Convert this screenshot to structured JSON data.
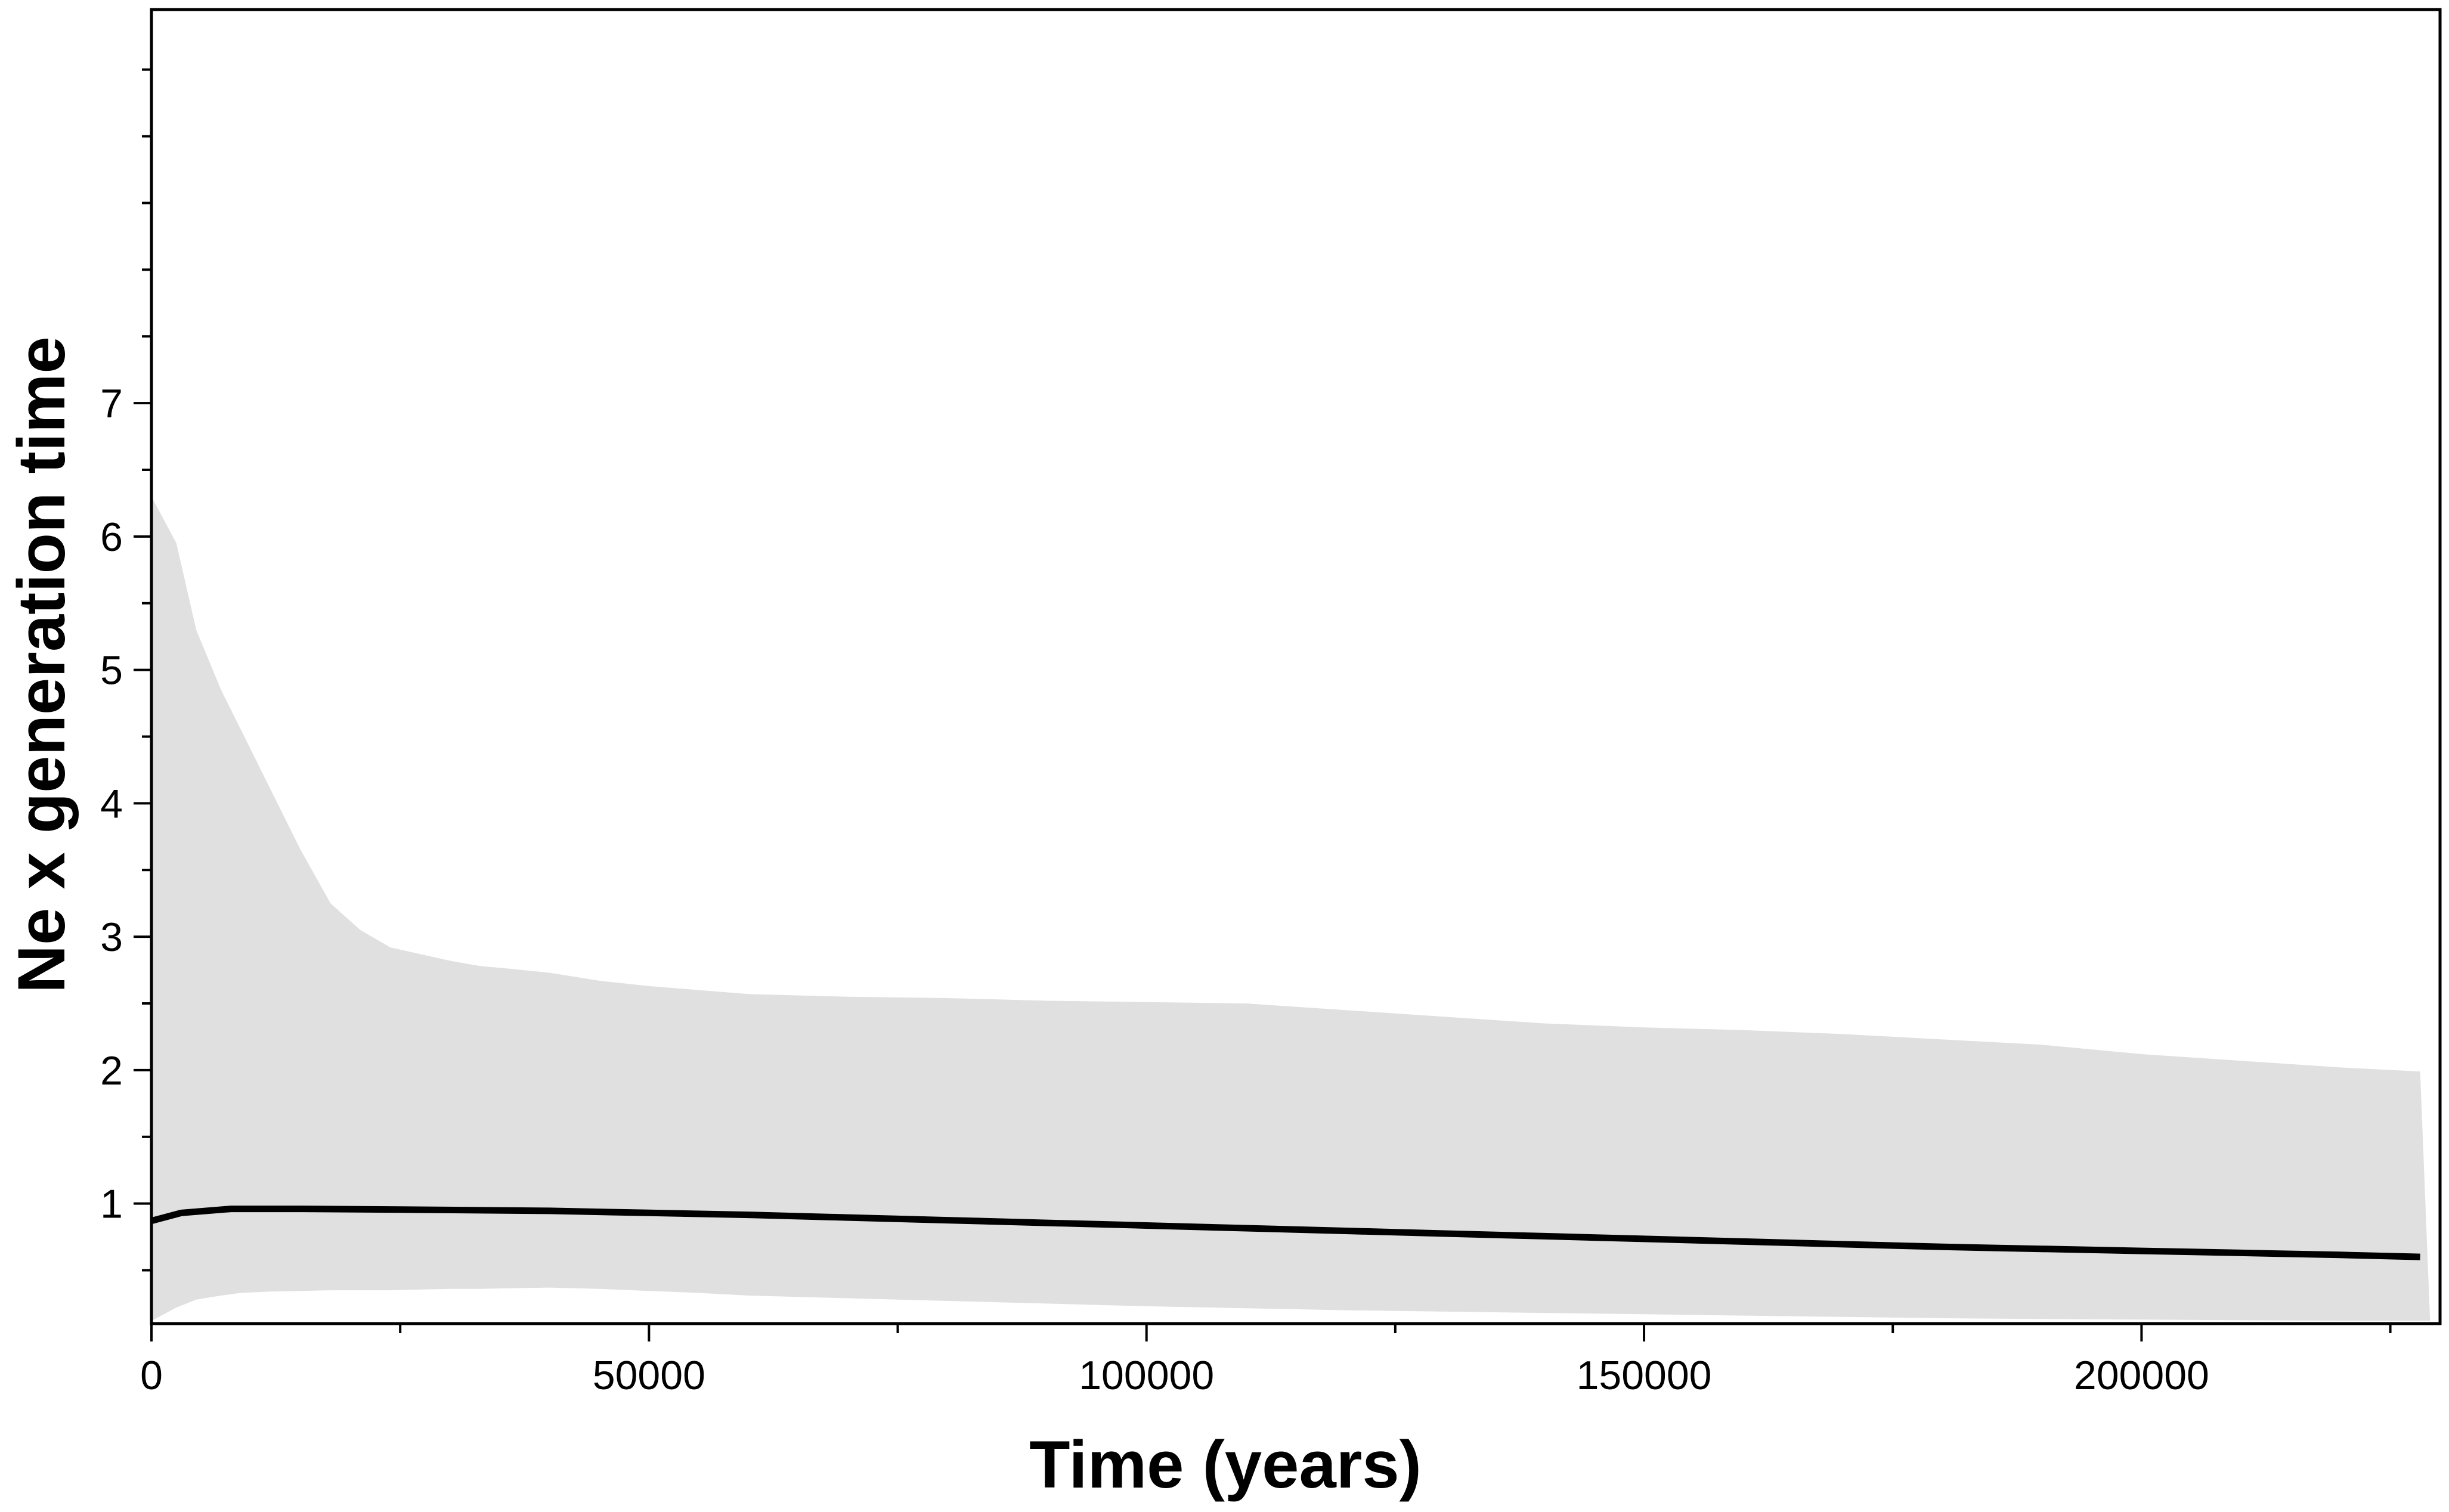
{
  "chart_data": {
    "type": "line",
    "title": "",
    "xlabel": "Time (years)",
    "ylabel": "Ne x generation time",
    "xlim": [
      0,
      230000
    ],
    "ylim": [
      0.1,
      9.95
    ],
    "x_ticks": [
      0,
      50000,
      100000,
      150000,
      200000
    ],
    "x_tick_labels": [
      "0",
      "50000",
      "100000",
      "150000",
      "200000"
    ],
    "x_minor_step": 25000,
    "y_ticks": [
      1,
      2,
      3,
      4,
      5,
      6,
      7
    ],
    "y_tick_labels": [
      "1",
      "2",
      "3",
      "4",
      "5",
      "6",
      "7"
    ],
    "y_minor_step": 0.5,
    "y_minor_max": 9.5,
    "grid": false,
    "legend": "none",
    "colors": {
      "median_line": "#000000",
      "hpd_band": "#e0e0e0",
      "axes": "#000000"
    },
    "series": [
      {
        "role": "median",
        "x": [
          0,
          3000,
          8000,
          15000,
          25000,
          40000,
          50000,
          60000,
          70000,
          80000,
          90000,
          100000,
          110000,
          120000,
          130000,
          140000,
          150000,
          160000,
          170000,
          180000,
          190000,
          200000,
          210000,
          220000,
          228000
        ],
        "y": [
          0.87,
          0.93,
          0.96,
          0.96,
          0.955,
          0.945,
          0.93,
          0.915,
          0.895,
          0.875,
          0.855,
          0.835,
          0.815,
          0.795,
          0.775,
          0.755,
          0.735,
          0.715,
          0.695,
          0.675,
          0.66,
          0.645,
          0.63,
          0.615,
          0.6
        ]
      }
    ],
    "band": {
      "role": "95% HPD",
      "x": [
        0,
        2500,
        4500,
        7000,
        9000,
        12000,
        15000,
        18000,
        21000,
        24000,
        27000,
        30000,
        33000,
        36000,
        40000,
        45000,
        50000,
        55000,
        60000,
        70000,
        80000,
        90000,
        100000,
        110000,
        120000,
        130000,
        140000,
        150000,
        160000,
        170000,
        180000,
        190000,
        200000,
        210000,
        220000,
        228000,
        229000
      ],
      "upper": [
        6.3,
        5.95,
        5.3,
        4.85,
        4.55,
        4.1,
        3.65,
        3.25,
        3.05,
        2.92,
        2.87,
        2.82,
        2.78,
        2.76,
        2.73,
        2.67,
        2.63,
        2.6,
        2.57,
        2.55,
        2.54,
        2.52,
        2.51,
        2.5,
        2.45,
        2.4,
        2.35,
        2.32,
        2.3,
        2.27,
        2.23,
        2.19,
        2.12,
        2.07,
        2.02,
        1.99,
        0.12
      ],
      "lower": [
        0.12,
        0.22,
        0.28,
        0.31,
        0.33,
        0.34,
        0.345,
        0.35,
        0.35,
        0.35,
        0.355,
        0.36,
        0.36,
        0.365,
        0.37,
        0.36,
        0.345,
        0.33,
        0.31,
        0.29,
        0.27,
        0.25,
        0.23,
        0.215,
        0.2,
        0.19,
        0.18,
        0.17,
        0.16,
        0.15,
        0.14,
        0.135,
        0.13,
        0.125,
        0.12,
        0.12,
        0.12
      ]
    }
  }
}
